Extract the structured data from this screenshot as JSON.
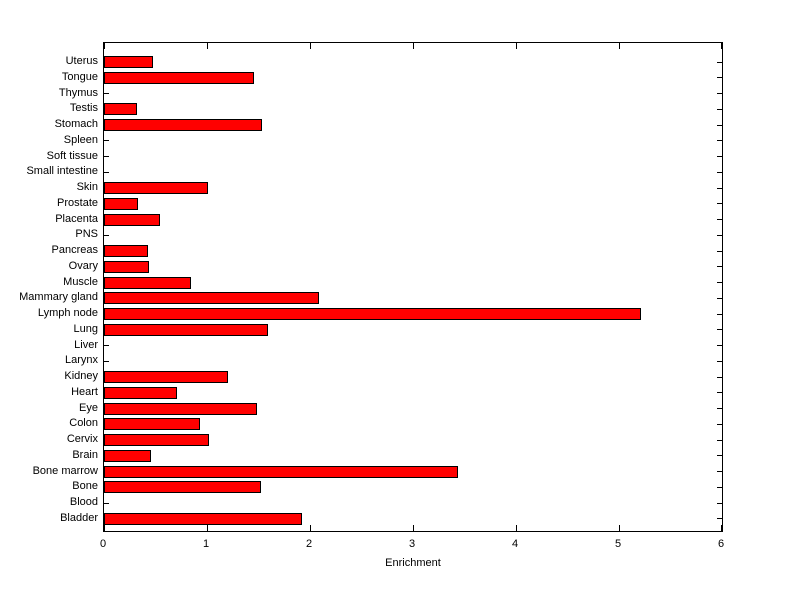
{
  "figure": {
    "background": "#ffffff"
  },
  "chart_data": {
    "type": "bar",
    "orientation": "horizontal",
    "title": "",
    "xlabel": "Enrichment",
    "ylabel": "",
    "xlim": [
      0,
      6
    ],
    "xticks": [
      0,
      1,
      2,
      3,
      4,
      5,
      6
    ],
    "grid": false,
    "legend": null,
    "bar_color": "#ff0000",
    "bar_edge_color": "#000000",
    "axis_color": "#000000",
    "categories": [
      "Uterus",
      "Tongue",
      "Thymus",
      "Testis",
      "Stomach",
      "Spleen",
      "Soft tissue",
      "Small intestine",
      "Skin",
      "Prostate",
      "Placenta",
      "PNS",
      "Pancreas",
      "Ovary",
      "Muscle",
      "Mammary gland",
      "Lymph node",
      "Lung",
      "Liver",
      "Larynx",
      "Kidney",
      "Heart",
      "Eye",
      "Colon",
      "Cervix",
      "Brain",
      "Bone marrow",
      "Bone",
      "Blood",
      "Bladder"
    ],
    "values": [
      0.47,
      1.45,
      0,
      0.32,
      1.53,
      0,
      0,
      0,
      1.01,
      0.33,
      0.54,
      0,
      0.43,
      0.44,
      0.84,
      2.08,
      5.2,
      1.59,
      0,
      0,
      1.2,
      0.71,
      1.48,
      0.93,
      1.02,
      0.45,
      3.43,
      1.52,
      0,
      1.92
    ]
  }
}
